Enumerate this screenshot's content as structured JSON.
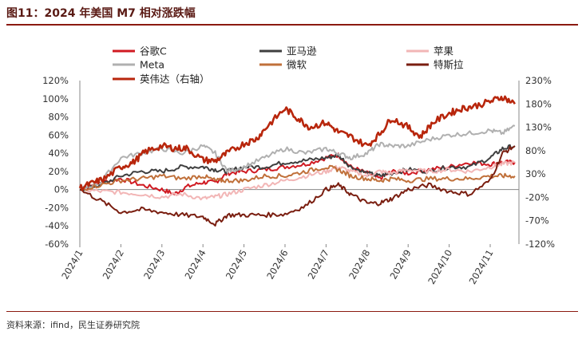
{
  "header": {
    "title": "图11：2024 年美国 M7 相对涨跌幅"
  },
  "footer": {
    "source": "资料来源：ifind，民生证券研究院"
  },
  "chart_data": {
    "type": "line",
    "title": "图11：2024 年美国 M7 相对涨跌幅",
    "x_tick_labels": [
      "2024/1",
      "2024/2",
      "2024/3",
      "2024/4",
      "2024/5",
      "2024/6",
      "2024/7",
      "2024/8",
      "2024/9",
      "2024/10",
      "2024/11"
    ],
    "y_left": {
      "ticks": [
        "120%",
        "100%",
        "80%",
        "60%",
        "40%",
        "20%",
        "0%",
        "-20%",
        "-40%",
        "-60%"
      ],
      "lim": [
        -60,
        120
      ]
    },
    "y_right": {
      "ticks": [
        "230%",
        "180%",
        "130%",
        "80%",
        "30%",
        "-20%",
        "-70%",
        "-120%"
      ],
      "lim": [
        -120,
        230
      ]
    },
    "legend": [
      "谷歌C",
      "亚马逊",
      "苹果",
      "Meta",
      "微软",
      "特斯拉",
      "英伟达（右轴）"
    ],
    "series": [
      {
        "name": "谷歌C",
        "color": "#d01a22",
        "axis": "left",
        "points": [
          [
            1,
            0
          ],
          [
            1.5,
            8
          ],
          [
            2,
            12
          ],
          [
            2.5,
            5
          ],
          [
            3,
            0
          ],
          [
            3.3,
            -5
          ],
          [
            3.6,
            3
          ],
          [
            4,
            8
          ],
          [
            4.3,
            8
          ],
          [
            4.6,
            18
          ],
          [
            5,
            20
          ],
          [
            5.5,
            22
          ],
          [
            6,
            25
          ],
          [
            6.5,
            28
          ],
          [
            7,
            35
          ],
          [
            7.3,
            38
          ],
          [
            7.6,
            25
          ],
          [
            8,
            18
          ],
          [
            8.3,
            12
          ],
          [
            8.6,
            20
          ],
          [
            9,
            18
          ],
          [
            9.5,
            22
          ],
          [
            10,
            25
          ],
          [
            10.5,
            30
          ],
          [
            11,
            28
          ],
          [
            11.3,
            30
          ],
          [
            11.6,
            30
          ]
        ]
      },
      {
        "name": "亚马逊",
        "color": "#3f3f3f",
        "axis": "left",
        "points": [
          [
            1,
            0
          ],
          [
            1.5,
            5
          ],
          [
            2,
            15
          ],
          [
            2.5,
            20
          ],
          [
            3,
            20
          ],
          [
            3.5,
            25
          ],
          [
            4,
            25
          ],
          [
            4.3,
            22
          ],
          [
            4.6,
            20
          ],
          [
            5,
            25
          ],
          [
            5.5,
            25
          ],
          [
            6,
            30
          ],
          [
            6.5,
            32
          ],
          [
            7,
            35
          ],
          [
            7.3,
            38
          ],
          [
            7.6,
            25
          ],
          [
            8,
            18
          ],
          [
            8.3,
            15
          ],
          [
            8.6,
            18
          ],
          [
            9,
            22
          ],
          [
            9.5,
            20
          ],
          [
            10,
            25
          ],
          [
            10.5,
            25
          ],
          [
            11,
            35
          ],
          [
            11.3,
            45
          ],
          [
            11.6,
            48
          ]
        ]
      },
      {
        "name": "苹果",
        "color": "#f2b6b6",
        "axis": "left",
        "points": [
          [
            1,
            0
          ],
          [
            1.5,
            -2
          ],
          [
            2,
            -3
          ],
          [
            2.5,
            -5
          ],
          [
            3,
            -8
          ],
          [
            3.5,
            -5
          ],
          [
            4,
            -10
          ],
          [
            4.3,
            -8
          ],
          [
            4.6,
            -5
          ],
          [
            5,
            0
          ],
          [
            5.5,
            5
          ],
          [
            6,
            10
          ],
          [
            6.5,
            15
          ],
          [
            7,
            20
          ],
          [
            7.3,
            25
          ],
          [
            7.6,
            20
          ],
          [
            8,
            15
          ],
          [
            8.3,
            20
          ],
          [
            8.6,
            18
          ],
          [
            9,
            22
          ],
          [
            9.5,
            20
          ],
          [
            10,
            22
          ],
          [
            10.5,
            20
          ],
          [
            11,
            25
          ],
          [
            11.3,
            28
          ],
          [
            11.6,
            30
          ]
        ]
      },
      {
        "name": "Meta",
        "color": "#b0b0b0",
        "axis": "left",
        "points": [
          [
            1,
            0
          ],
          [
            1.5,
            8
          ],
          [
            2,
            35
          ],
          [
            2.5,
            40
          ],
          [
            3,
            45
          ],
          [
            3.5,
            40
          ],
          [
            4,
            48
          ],
          [
            4.3,
            40
          ],
          [
            4.6,
            20
          ],
          [
            5,
            25
          ],
          [
            5.5,
            35
          ],
          [
            6,
            45
          ],
          [
            6.5,
            40
          ],
          [
            7,
            45
          ],
          [
            7.3,
            40
          ],
          [
            7.6,
            35
          ],
          [
            8,
            40
          ],
          [
            8.3,
            50
          ],
          [
            8.6,
            48
          ],
          [
            9,
            48
          ],
          [
            9.5,
            55
          ],
          [
            10,
            60
          ],
          [
            10.5,
            62
          ],
          [
            11,
            65
          ],
          [
            11.3,
            62
          ],
          [
            11.6,
            70
          ]
        ]
      },
      {
        "name": "微软",
        "color": "#c0703a",
        "axis": "left",
        "points": [
          [
            1,
            0
          ],
          [
            1.5,
            5
          ],
          [
            2,
            10
          ],
          [
            2.5,
            12
          ],
          [
            3,
            15
          ],
          [
            3.5,
            12
          ],
          [
            4,
            15
          ],
          [
            4.3,
            10
          ],
          [
            4.6,
            10
          ],
          [
            5,
            10
          ],
          [
            5.5,
            15
          ],
          [
            6,
            15
          ],
          [
            6.5,
            20
          ],
          [
            7,
            25
          ],
          [
            7.3,
            22
          ],
          [
            7.6,
            15
          ],
          [
            8,
            12
          ],
          [
            8.3,
            10
          ],
          [
            8.6,
            12
          ],
          [
            9,
            10
          ],
          [
            9.5,
            12
          ],
          [
            10,
            12
          ],
          [
            10.5,
            12
          ],
          [
            11,
            15
          ],
          [
            11.3,
            15
          ],
          [
            11.6,
            15
          ]
        ]
      },
      {
        "name": "特斯拉",
        "color": "#7a1e10",
        "axis": "left",
        "points": [
          [
            1,
            0
          ],
          [
            1.5,
            -12
          ],
          [
            2,
            -25
          ],
          [
            2.5,
            -22
          ],
          [
            3,
            -25
          ],
          [
            3.5,
            -28
          ],
          [
            4,
            -30
          ],
          [
            4.3,
            -38
          ],
          [
            4.6,
            -28
          ],
          [
            5,
            -28
          ],
          [
            5.5,
            -28
          ],
          [
            6,
            -27
          ],
          [
            6.5,
            -18
          ],
          [
            7,
            0
          ],
          [
            7.3,
            5
          ],
          [
            7.6,
            -5
          ],
          [
            8,
            -15
          ],
          [
            8.3,
            -15
          ],
          [
            8.6,
            -10
          ],
          [
            9,
            0
          ],
          [
            9.5,
            5
          ],
          [
            10,
            -2
          ],
          [
            10.5,
            -5
          ],
          [
            11,
            10
          ],
          [
            11.3,
            40
          ],
          [
            11.6,
            48
          ]
        ]
      },
      {
        "name": "英伟达（右轴）",
        "color": "#b8260c",
        "axis": "right",
        "points": [
          [
            1,
            0
          ],
          [
            1.3,
            10
          ],
          [
            1.6,
            20
          ],
          [
            2,
            45
          ],
          [
            2.3,
            55
          ],
          [
            2.6,
            78
          ],
          [
            3,
            90
          ],
          [
            3.3,
            85
          ],
          [
            3.6,
            85
          ],
          [
            4,
            60
          ],
          [
            4.3,
            58
          ],
          [
            4.6,
            75
          ],
          [
            5,
            95
          ],
          [
            5.3,
            105
          ],
          [
            5.6,
            135
          ],
          [
            6,
            170
          ],
          [
            6.3,
            150
          ],
          [
            6.6,
            130
          ],
          [
            7,
            140
          ],
          [
            7.3,
            120
          ],
          [
            7.6,
            110
          ],
          [
            8,
            90
          ],
          [
            8.3,
            115
          ],
          [
            8.6,
            150
          ],
          [
            9,
            130
          ],
          [
            9.3,
            110
          ],
          [
            9.6,
            140
          ],
          [
            10,
            160
          ],
          [
            10.3,
            170
          ],
          [
            10.6,
            175
          ],
          [
            11,
            185
          ],
          [
            11.3,
            195
          ],
          [
            11.6,
            180
          ]
        ]
      }
    ]
  }
}
